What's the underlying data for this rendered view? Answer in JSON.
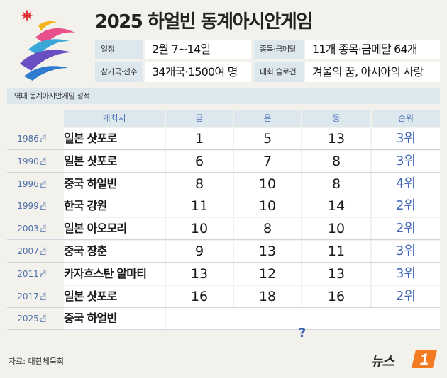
{
  "title": "2025 하얼빈 동계아시안게임",
  "info": {
    "schedule_label": "일정",
    "schedule_value": "2월 7~14일",
    "events_label": "종목·금메달",
    "events_value": "11개 종목·금메달 64개",
    "participants_label": "참가국·선수",
    "participants_value": "34개국·1500여 명",
    "slogan_label": "대회 슬로건",
    "slogan_value": "겨울의 꿈, 아시아의 사랑"
  },
  "section_title": "역대 동계아시안게임 성적",
  "headers": {
    "host": "개최지",
    "gold": "금",
    "silver": "은",
    "bronze": "동",
    "rank": "순위"
  },
  "rows": [
    {
      "year": "1986년",
      "host": "일본 삿포로",
      "gold": "1",
      "silver": "5",
      "bronze": "13",
      "rank": "3위"
    },
    {
      "year": "1990년",
      "host": "일본 삿포로",
      "gold": "6",
      "silver": "7",
      "bronze": "8",
      "rank": "3위"
    },
    {
      "year": "1996년",
      "host": "중국 하얼빈",
      "gold": "8",
      "silver": "10",
      "bronze": "8",
      "rank": "4위"
    },
    {
      "year": "1999년",
      "host": "한국 강원",
      "gold": "11",
      "silver": "10",
      "bronze": "14",
      "rank": "2위"
    },
    {
      "year": "2003년",
      "host": "일본 아오모리",
      "gold": "10",
      "silver": "8",
      "bronze": "10",
      "rank": "2위"
    },
    {
      "year": "2007년",
      "host": "중국 장춘",
      "gold": "9",
      "silver": "13",
      "bronze": "11",
      "rank": "3위"
    },
    {
      "year": "2011년",
      "host": "카자흐스탄 알마티",
      "gold": "13",
      "silver": "12",
      "bronze": "13",
      "rank": "3위"
    },
    {
      "year": "2017년",
      "host": "일본 삿포로",
      "gold": "16",
      "silver": "18",
      "bronze": "16",
      "rank": "2위"
    },
    {
      "year": "2025년",
      "host": "중국 하얼빈",
      "gold": "",
      "silver": "",
      "bronze": "",
      "rank": ""
    }
  ],
  "unknown_mark": "?",
  "source": "자료: 대한체육회",
  "brand": {
    "text": "뉴스",
    "badge": "1"
  },
  "colors": {
    "accent": "#3f66b5",
    "header_bg": "#dde7ee",
    "brand_orange": "#f47a20",
    "background": "#f3f1ec"
  }
}
